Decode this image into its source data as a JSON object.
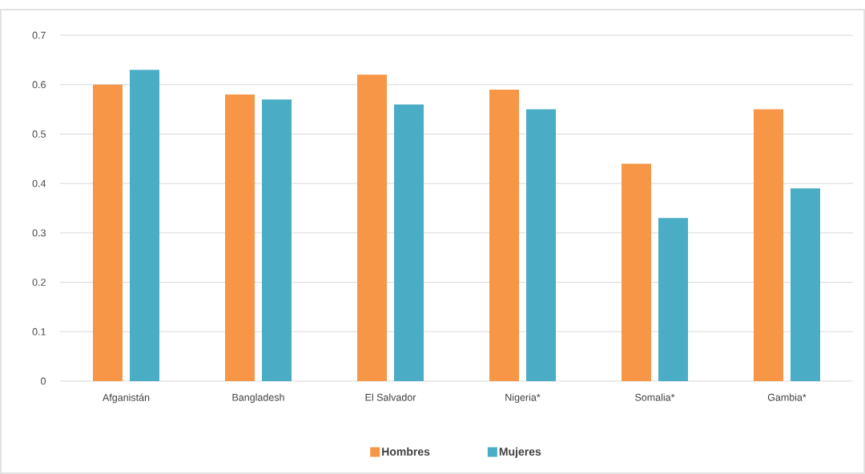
{
  "chart_data": {
    "type": "bar",
    "categories": [
      "Afganistán",
      "Bangladesh",
      "El Salvador",
      "Nigeria*",
      "Somalia*",
      "Gambia*"
    ],
    "series": [
      {
        "name": "Hombres",
        "color": "#f79646",
        "values": [
          0.6,
          0.58,
          0.62,
          0.59,
          0.44,
          0.55
        ]
      },
      {
        "name": "Mujeres",
        "color": "#4bacc6",
        "values": [
          0.63,
          0.57,
          0.56,
          0.55,
          0.33,
          0.39
        ]
      }
    ],
    "ylim": [
      0,
      0.7
    ],
    "yticks": [
      0,
      0.1,
      0.2,
      0.3,
      0.4,
      0.5,
      0.6,
      0.7
    ],
    "grid": "y",
    "legend": "bottom"
  }
}
